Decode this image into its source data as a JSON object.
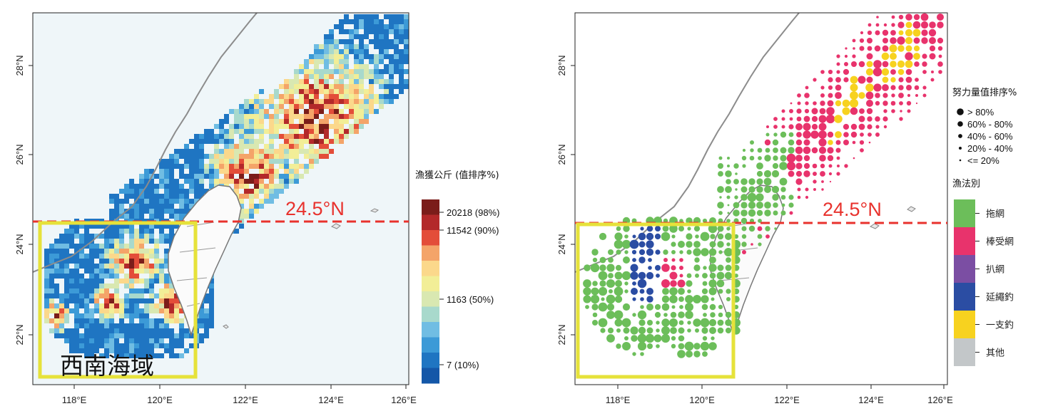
{
  "left_map": {
    "latitude_line_label": "24.5°N",
    "region_label": "西南海域",
    "x_ticks": [
      "118°E",
      "120°E",
      "122°E",
      "124°E",
      "126°E"
    ],
    "y_ticks": [
      "22°N",
      "24°N",
      "26°N",
      "28°N"
    ],
    "legend_title": "漁獲公斤 (值排序%)",
    "legend_labels": [
      "20218 (98%)",
      "11542 (90%)",
      "1163 (50%)",
      "7 (10%)"
    ],
    "colors": [
      "#7b1d1a",
      "#b3292a",
      "#e34d39",
      "#f4a469",
      "#fbd88b",
      "#f2ee97",
      "#d9e8b1",
      "#a8d9cc",
      "#70bde3",
      "#3c9ad7",
      "#1f75c2",
      "#1457a8"
    ]
  },
  "right_map": {
    "latitude_line_label": "24.5°N",
    "x_ticks": [
      "118°E",
      "120°E",
      "122°E",
      "124°E",
      "126°E"
    ],
    "y_ticks": [
      "22°N",
      "24°N",
      "26°N",
      "28°N"
    ],
    "size_legend_title": "努力量值排序%",
    "size_legend_labels": [
      "> 80%",
      "60% - 80%",
      "40% - 60%",
      "20% - 40%",
      "<= 20%"
    ],
    "gear_legend_title": "漁法別",
    "gear_types": [
      {
        "label": "拖網",
        "color": "#6cbe5a"
      },
      {
        "label": "棒受網",
        "color": "#e8336c"
      },
      {
        "label": "扒網",
        "color": "#7b4ea3"
      },
      {
        "label": "延繩釣",
        "color": "#2b4da3"
      },
      {
        "label": "一支釣",
        "color": "#f7d21f"
      },
      {
        "label": "其他",
        "color": "#c3c7c9"
      }
    ]
  }
}
